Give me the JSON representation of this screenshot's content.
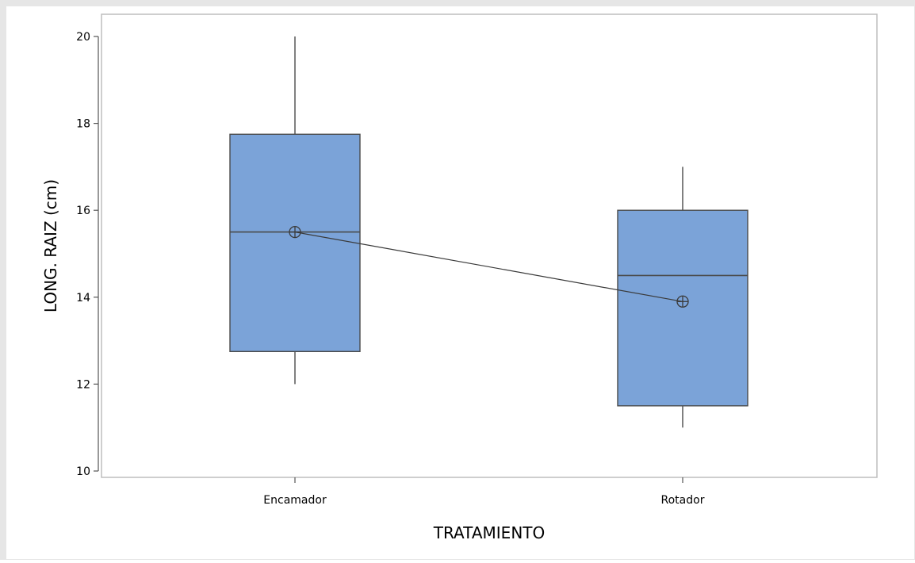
{
  "chart_data": {
    "type": "boxplot",
    "title": "",
    "xlabel": "TRATAMIENTO",
    "ylabel": "LONG. RAIZ (cm)",
    "ylim": [
      9.8,
      20.5
    ],
    "yticks": [
      10,
      12,
      14,
      16,
      18,
      20
    ],
    "categories": [
      "Encamador",
      "Rotador"
    ],
    "boxes": [
      {
        "category": "Encamador",
        "whisker_low": 12,
        "q1": 12.75,
        "median": 15.5,
        "q3": 17.75,
        "whisker_high": 20,
        "mean": 15.5
      },
      {
        "category": "Rotador",
        "whisker_low": 11,
        "q1": 11.5,
        "median": 14.5,
        "q3": 16,
        "whisker_high": 17,
        "mean": 13.9
      }
    ],
    "mean_line": true,
    "grid": false,
    "colors": {
      "box_fill": "#7BA3D8",
      "box_stroke": "#4a4a4a",
      "outer_background": "#E6E6E6",
      "plot_background": "#FFFFFF",
      "frame": "#BDBDBD"
    }
  }
}
